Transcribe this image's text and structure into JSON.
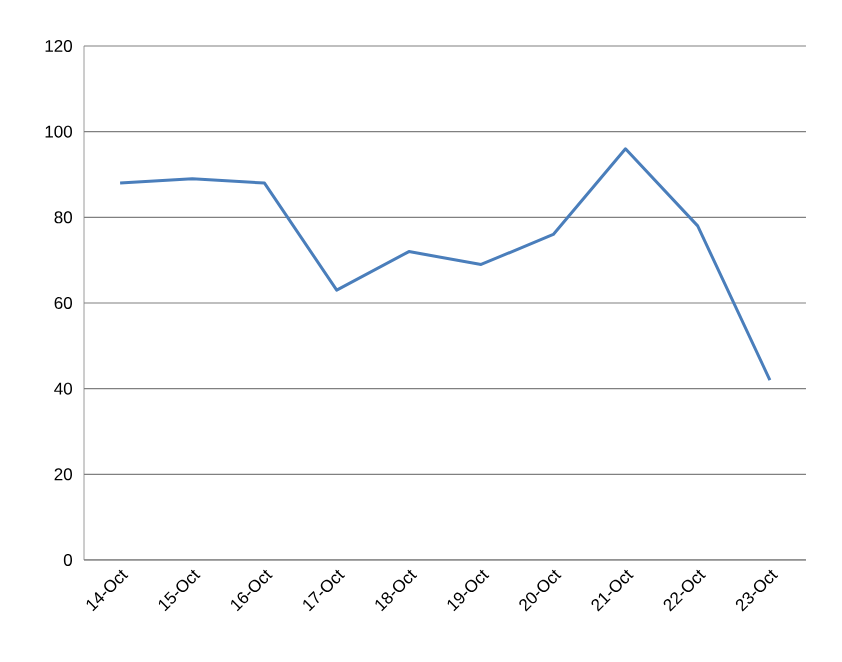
{
  "chart_data": {
    "type": "line",
    "categories": [
      "14-Oct",
      "15-Oct",
      "16-Oct",
      "17-Oct",
      "18-Oct",
      "19-Oct",
      "20-Oct",
      "21-Oct",
      "22-Oct",
      "23-Oct"
    ],
    "values": [
      88,
      89,
      88,
      63,
      72,
      69,
      76,
      96,
      78,
      42
    ],
    "color": "#4a7ebb",
    "ylim": [
      0,
      120
    ],
    "yticks": [
      0,
      20,
      40,
      60,
      80,
      100,
      120
    ],
    "grid": "y",
    "marker": "none",
    "line_style": "solid"
  }
}
